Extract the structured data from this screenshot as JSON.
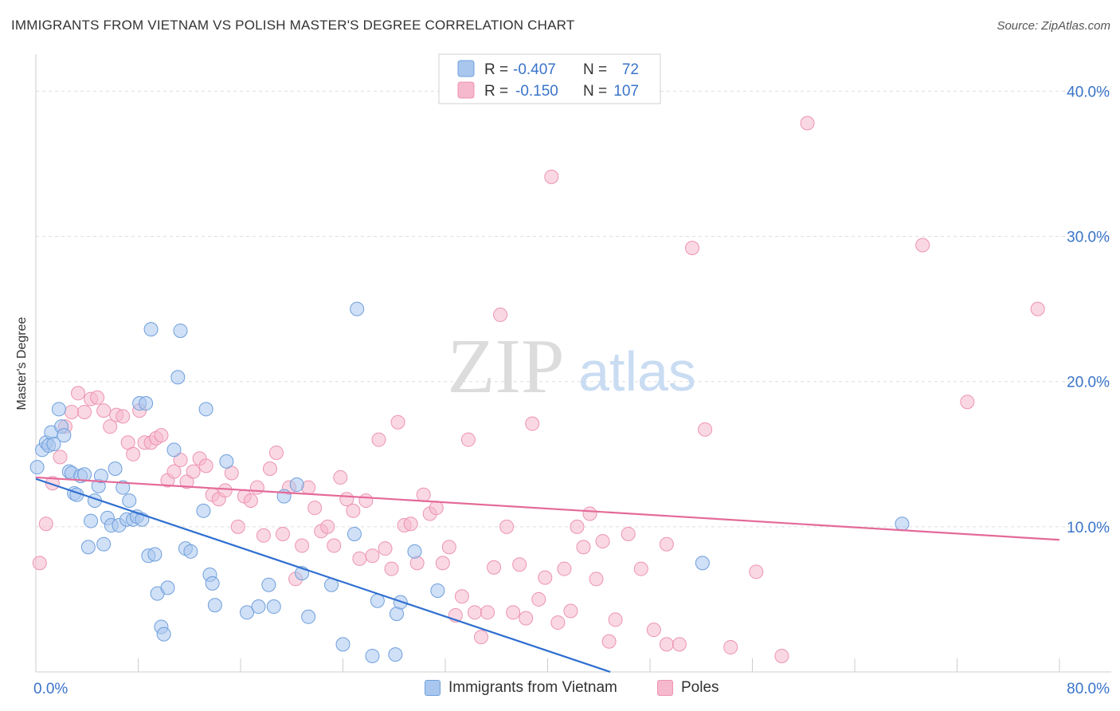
{
  "title": "IMMIGRANTS FROM VIETNAM VS POLISH MASTER'S DEGREE CORRELATION CHART",
  "source": "Source: ZipAtlas.com",
  "watermark": {
    "zip": "ZIP",
    "atlas": "atlas"
  },
  "legend": {
    "r_label": "R =",
    "n_label": "N =",
    "series1": {
      "r": "-0.407",
      "n": "72"
    },
    "series2": {
      "r": "-0.150",
      "n": "107"
    }
  },
  "colors": {
    "blue_fill": "#a9c7ee",
    "blue_stroke": "#6e9fdc",
    "blue_line": "#2f6fd0",
    "pink_fill": "#f5b8cc",
    "pink_stroke": "#ec93b1",
    "pink_line": "#e46a98",
    "axis_text": "#3a74c9",
    "grid": "#dddddd"
  },
  "chart_data": {
    "type": "scatter",
    "xlabel": "",
    "ylabel": "Master's Degree",
    "xlim": [
      0,
      80
    ],
    "ylim": [
      0,
      42
    ],
    "x_tick_labels": [
      "0.0%",
      "80.0%"
    ],
    "y_ticks": [
      10,
      20,
      30,
      40
    ],
    "y_tick_labels": [
      "10.0%",
      "20.0%",
      "30.0%",
      "40.0%"
    ],
    "grid": true,
    "legend_position": "top-center",
    "series": [
      {
        "name": "Immigrants from Vietnam",
        "color": "blue",
        "r": -0.407,
        "n": 72,
        "trend": [
          [
            0,
            13.3
          ],
          [
            80,
            -10.4
          ]
        ],
        "points": [
          [
            0.1,
            14.1
          ],
          [
            0.5,
            15.3
          ],
          [
            0.8,
            15.8
          ],
          [
            1.0,
            15.6
          ],
          [
            1.2,
            16.5
          ],
          [
            1.4,
            15.7
          ],
          [
            1.8,
            18.1
          ],
          [
            2.0,
            16.9
          ],
          [
            2.2,
            16.3
          ],
          [
            2.6,
            13.8
          ],
          [
            2.8,
            13.7
          ],
          [
            3.0,
            12.3
          ],
          [
            3.2,
            12.2
          ],
          [
            3.5,
            13.5
          ],
          [
            3.8,
            13.6
          ],
          [
            4.1,
            8.6
          ],
          [
            4.3,
            10.4
          ],
          [
            4.6,
            11.8
          ],
          [
            4.9,
            12.8
          ],
          [
            5.1,
            13.5
          ],
          [
            5.3,
            8.8
          ],
          [
            5.6,
            10.6
          ],
          [
            5.9,
            10.1
          ],
          [
            6.2,
            14.0
          ],
          [
            6.5,
            10.1
          ],
          [
            6.8,
            12.7
          ],
          [
            7.1,
            10.5
          ],
          [
            7.3,
            11.8
          ],
          [
            7.6,
            10.5
          ],
          [
            7.9,
            10.7
          ],
          [
            8.1,
            18.5
          ],
          [
            8.3,
            10.5
          ],
          [
            8.6,
            18.5
          ],
          [
            8.8,
            8.0
          ],
          [
            9.0,
            23.6
          ],
          [
            9.3,
            8.1
          ],
          [
            9.5,
            5.4
          ],
          [
            9.8,
            3.1
          ],
          [
            10.0,
            2.6
          ],
          [
            10.3,
            5.8
          ],
          [
            10.8,
            15.3
          ],
          [
            11.1,
            20.3
          ],
          [
            11.3,
            23.5
          ],
          [
            11.7,
            8.5
          ],
          [
            12.1,
            8.3
          ],
          [
            13.1,
            11.1
          ],
          [
            13.3,
            18.1
          ],
          [
            13.6,
            6.7
          ],
          [
            13.8,
            6.1
          ],
          [
            14.0,
            4.6
          ],
          [
            14.9,
            14.5
          ],
          [
            16.5,
            4.1
          ],
          [
            17.4,
            4.5
          ],
          [
            18.2,
            6.0
          ],
          [
            18.6,
            4.5
          ],
          [
            19.4,
            12.1
          ],
          [
            20.4,
            12.9
          ],
          [
            20.8,
            6.8
          ],
          [
            21.3,
            3.8
          ],
          [
            23.1,
            6.0
          ],
          [
            24.0,
            1.9
          ],
          [
            24.9,
            9.5
          ],
          [
            25.1,
            25.0
          ],
          [
            26.3,
            1.1
          ],
          [
            26.7,
            4.9
          ],
          [
            28.1,
            1.2
          ],
          [
            28.2,
            4.0
          ],
          [
            28.5,
            4.8
          ],
          [
            29.6,
            8.3
          ],
          [
            31.4,
            5.6
          ],
          [
            52.1,
            7.5
          ],
          [
            67.7,
            10.2
          ]
        ]
      },
      {
        "name": "Poles",
        "color": "pink",
        "r": -0.15,
        "n": 107,
        "trend": [
          [
            0,
            13.4
          ],
          [
            80,
            9.1
          ]
        ],
        "points": [
          [
            0.3,
            7.5
          ],
          [
            0.8,
            10.2
          ],
          [
            1.3,
            13.0
          ],
          [
            1.9,
            14.8
          ],
          [
            2.3,
            16.9
          ],
          [
            2.8,
            17.9
          ],
          [
            3.3,
            19.2
          ],
          [
            3.8,
            17.9
          ],
          [
            4.3,
            18.8
          ],
          [
            4.8,
            18.9
          ],
          [
            5.3,
            18.0
          ],
          [
            5.8,
            16.9
          ],
          [
            6.3,
            17.7
          ],
          [
            6.8,
            17.6
          ],
          [
            7.2,
            15.8
          ],
          [
            7.6,
            15.0
          ],
          [
            8.1,
            18.0
          ],
          [
            8.5,
            15.8
          ],
          [
            9.0,
            15.8
          ],
          [
            9.4,
            16.1
          ],
          [
            9.8,
            16.3
          ],
          [
            10.3,
            13.2
          ],
          [
            10.8,
            13.8
          ],
          [
            11.3,
            14.6
          ],
          [
            11.8,
            13.1
          ],
          [
            12.3,
            13.8
          ],
          [
            12.8,
            14.7
          ],
          [
            13.3,
            14.2
          ],
          [
            13.8,
            12.2
          ],
          [
            14.3,
            11.9
          ],
          [
            14.8,
            12.5
          ],
          [
            15.3,
            13.7
          ],
          [
            15.8,
            10.0
          ],
          [
            16.3,
            12.1
          ],
          [
            16.8,
            11.8
          ],
          [
            17.3,
            12.7
          ],
          [
            17.8,
            9.4
          ],
          [
            18.3,
            14.0
          ],
          [
            18.8,
            15.1
          ],
          [
            19.3,
            9.5
          ],
          [
            19.8,
            12.7
          ],
          [
            20.3,
            6.4
          ],
          [
            20.8,
            8.7
          ],
          [
            21.3,
            12.7
          ],
          [
            21.8,
            11.3
          ],
          [
            22.3,
            9.7
          ],
          [
            22.8,
            10.0
          ],
          [
            23.3,
            8.7
          ],
          [
            23.8,
            13.4
          ],
          [
            24.3,
            11.9
          ],
          [
            24.8,
            11.1
          ],
          [
            25.3,
            7.8
          ],
          [
            25.8,
            11.8
          ],
          [
            26.3,
            8.0
          ],
          [
            26.8,
            16.0
          ],
          [
            27.3,
            8.5
          ],
          [
            27.8,
            7.1
          ],
          [
            28.3,
            17.2
          ],
          [
            28.8,
            10.1
          ],
          [
            29.3,
            10.2
          ],
          [
            29.8,
            7.5
          ],
          [
            30.3,
            12.2
          ],
          [
            30.8,
            10.9
          ],
          [
            31.3,
            11.3
          ],
          [
            31.8,
            7.5
          ],
          [
            32.3,
            8.6
          ],
          [
            32.8,
            3.9
          ],
          [
            33.3,
            5.2
          ],
          [
            33.8,
            16.0
          ],
          [
            34.3,
            4.1
          ],
          [
            34.8,
            2.4
          ],
          [
            35.3,
            4.1
          ],
          [
            35.8,
            7.2
          ],
          [
            36.3,
            24.6
          ],
          [
            36.8,
            10.0
          ],
          [
            37.3,
            4.1
          ],
          [
            37.8,
            7.4
          ],
          [
            38.3,
            3.7
          ],
          [
            38.8,
            17.1
          ],
          [
            39.3,
            5.0
          ],
          [
            39.8,
            6.5
          ],
          [
            40.3,
            34.1
          ],
          [
            40.8,
            3.4
          ],
          [
            41.3,
            7.1
          ],
          [
            41.8,
            4.2
          ],
          [
            42.3,
            10.0
          ],
          [
            42.8,
            8.6
          ],
          [
            43.3,
            10.9
          ],
          [
            43.8,
            6.4
          ],
          [
            44.3,
            9.0
          ],
          [
            44.8,
            2.1
          ],
          [
            45.3,
            3.6
          ],
          [
            46.3,
            9.5
          ],
          [
            47.3,
            7.1
          ],
          [
            48.3,
            2.9
          ],
          [
            49.3,
            1.9
          ],
          [
            50.3,
            1.9
          ],
          [
            52.3,
            16.7
          ],
          [
            54.3,
            1.7
          ],
          [
            56.3,
            6.9
          ],
          [
            58.3,
            1.1
          ],
          [
            60.3,
            37.8
          ],
          [
            69.3,
            29.4
          ],
          [
            72.8,
            18.6
          ],
          [
            78.3,
            25.0
          ],
          [
            51.3,
            29.2
          ],
          [
            49.3,
            8.8
          ]
        ]
      }
    ]
  },
  "bottom_legend": [
    "Immigrants from Vietnam",
    "Poles"
  ]
}
